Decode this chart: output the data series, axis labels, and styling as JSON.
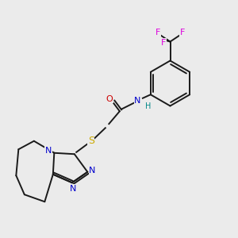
{
  "background_color": "#ebebeb",
  "C_color": "#1a1a1a",
  "N_color": "#0000cc",
  "O_color": "#cc0000",
  "S_color": "#ccaa00",
  "F_color": "#dd00dd",
  "H_color": "#008888",
  "lw": 1.4,
  "fontsize": 8,
  "xlim": [
    0,
    10
  ],
  "ylim": [
    0,
    10
  ]
}
